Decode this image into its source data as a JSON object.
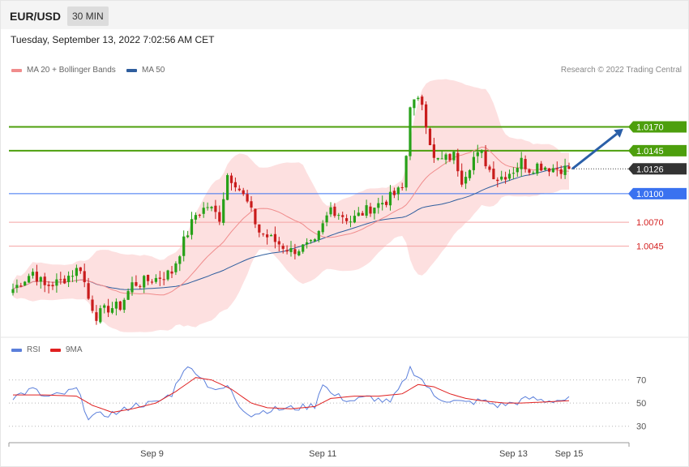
{
  "header": {
    "symbol": "EUR/USD",
    "timeframe": "30 MIN",
    "datetime": "Tuesday, September 13, 2022 7:02:56 AM CET",
    "credit": "Research © 2022 Trading Central"
  },
  "legend": [
    {
      "label": "MA 20 + Bollinger Bands",
      "color": "#f08c8c"
    },
    {
      "label": "MA 50",
      "color": "#2f5e9e"
    }
  ],
  "rsi_legend": [
    {
      "label": "RSI",
      "color": "#5b7fdb"
    },
    {
      "label": "9MA",
      "color": "#e02020"
    }
  ],
  "colors": {
    "bull": "#27a118",
    "bear": "#c91c1c",
    "ma20": "#f08c8c",
    "ma50": "#2f5e9e",
    "band_fill": "#fde0e0",
    "green_level": "#4d9f0d",
    "blue_level": "#3a72f0",
    "red_level": "#f4a3a3",
    "current": "#333333",
    "arrow": "#2a5fa8",
    "rsi": "#5b7fdb",
    "rsi_ma": "#e02020"
  },
  "chart_data": [
    {
      "type": "candlestick",
      "title": "EUR/USD",
      "timeframe": "30 MIN",
      "ylim": [
        0.9952,
        1.0218
      ],
      "last_price": 1.0126,
      "levels": [
        {
          "value": 1.017,
          "label": "1.0170",
          "kind": "resistance"
        },
        {
          "value": 1.0145,
          "label": "1.0145",
          "kind": "resistance"
        },
        {
          "value": 1.0126,
          "label": "1.0126",
          "kind": "current"
        },
        {
          "value": 1.01,
          "label": "1.0100",
          "kind": "pivot"
        },
        {
          "value": 1.007,
          "label": "1.0070",
          "kind": "support"
        },
        {
          "value": 1.0045,
          "label": "1.0045",
          "kind": "support"
        }
      ],
      "x_ticks": [
        {
          "label": "Sep 9",
          "index": 35
        },
        {
          "label": "Sep 11",
          "index": 78
        },
        {
          "label": "Sep 13",
          "index": 126
        },
        {
          "label": "Sep 15",
          "index": 140
        }
      ],
      "forecast_arrow": {
        "from_index": 140,
        "from_value": 1.0126,
        "to_index": 152,
        "to_value": 1.0168
      },
      "anchors": [
        [
          0,
          1.0
        ],
        [
          5,
          1.0018
        ],
        [
          8,
          1.0003
        ],
        [
          12,
          1.0008
        ],
        [
          17,
          1.0023
        ],
        [
          19,
          0.999
        ],
        [
          21,
          0.9972
        ],
        [
          24,
          0.998
        ],
        [
          27,
          0.9982
        ],
        [
          30,
          1.0005
        ],
        [
          36,
          1.0011
        ],
        [
          40,
          1.0018
        ],
        [
          43,
          1.005
        ],
        [
          46,
          1.0078
        ],
        [
          49,
          1.0087
        ],
        [
          52,
          1.0075
        ],
        [
          54,
          1.012
        ],
        [
          56,
          1.0112
        ],
        [
          59,
          1.009
        ],
        [
          62,
          1.006
        ],
        [
          66,
          1.005
        ],
        [
          70,
          1.004
        ],
        [
          76,
          1.0047
        ],
        [
          80,
          1.0085
        ],
        [
          85,
          1.0072
        ],
        [
          90,
          1.0085
        ],
        [
          94,
          1.0093
        ],
        [
          98,
          1.0105
        ],
        [
          99,
          1.014
        ],
        [
          100,
          1.0195
        ],
        [
          103,
          1.0196
        ],
        [
          104,
          1.0175
        ],
        [
          106,
          1.0135
        ],
        [
          108,
          1.0135
        ],
        [
          111,
          1.014
        ],
        [
          113,
          1.0115
        ],
        [
          116,
          1.0138
        ],
        [
          118,
          1.0141
        ],
        [
          120,
          1.0125
        ],
        [
          122,
          1.0116
        ],
        [
          124,
          1.012
        ],
        [
          126,
          1.0125
        ],
        [
          128,
          1.0134
        ],
        [
          130,
          1.0126
        ],
        [
          132,
          1.013
        ],
        [
          136,
          1.0127
        ],
        [
          140,
          1.0126
        ]
      ]
    },
    {
      "type": "line",
      "title": "RSI",
      "ylim": [
        20,
        90
      ],
      "y_ticks": [
        30,
        50,
        70
      ],
      "series": [
        {
          "name": "RSI",
          "anchors": [
            [
              0,
              55
            ],
            [
              5,
              62
            ],
            [
              8,
              55
            ],
            [
              12,
              57
            ],
            [
              16,
              62
            ],
            [
              19,
              38
            ],
            [
              23,
              40
            ],
            [
              27,
              42
            ],
            [
              30,
              48
            ],
            [
              36,
              50
            ],
            [
              40,
              58
            ],
            [
              43,
              80
            ],
            [
              46,
              78
            ],
            [
              49,
              66
            ],
            [
              52,
              60
            ],
            [
              54,
              65
            ],
            [
              57,
              48
            ],
            [
              60,
              40
            ],
            [
              64,
              44
            ],
            [
              68,
              45
            ],
            [
              72,
              46
            ],
            [
              76,
              48
            ],
            [
              78,
              68
            ],
            [
              80,
              58
            ],
            [
              85,
              52
            ],
            [
              90,
              55
            ],
            [
              95,
              50
            ],
            [
              98,
              66
            ],
            [
              100,
              80
            ],
            [
              103,
              70
            ],
            [
              106,
              56
            ],
            [
              110,
              52
            ],
            [
              114,
              50
            ],
            [
              118,
              52
            ],
            [
              122,
              48
            ],
            [
              126,
              50
            ],
            [
              130,
              54
            ],
            [
              134,
              52
            ],
            [
              140,
              53
            ]
          ]
        },
        {
          "name": "9MA",
          "anchors": [
            [
              0,
              57
            ],
            [
              8,
              57
            ],
            [
              16,
              56
            ],
            [
              20,
              48
            ],
            [
              25,
              42
            ],
            [
              30,
              45
            ],
            [
              36,
              50
            ],
            [
              41,
              60
            ],
            [
              46,
              72
            ],
            [
              50,
              70
            ],
            [
              55,
              62
            ],
            [
              60,
              50
            ],
            [
              64,
              46
            ],
            [
              70,
              45
            ],
            [
              76,
              47
            ],
            [
              80,
              54
            ],
            [
              86,
              56
            ],
            [
              92,
              56
            ],
            [
              98,
              58
            ],
            [
              102,
              66
            ],
            [
              106,
              64
            ],
            [
              110,
              58
            ],
            [
              114,
              54
            ],
            [
              118,
              52
            ],
            [
              124,
              50
            ],
            [
              128,
              50
            ],
            [
              134,
              51
            ],
            [
              140,
              52
            ]
          ]
        }
      ]
    }
  ]
}
